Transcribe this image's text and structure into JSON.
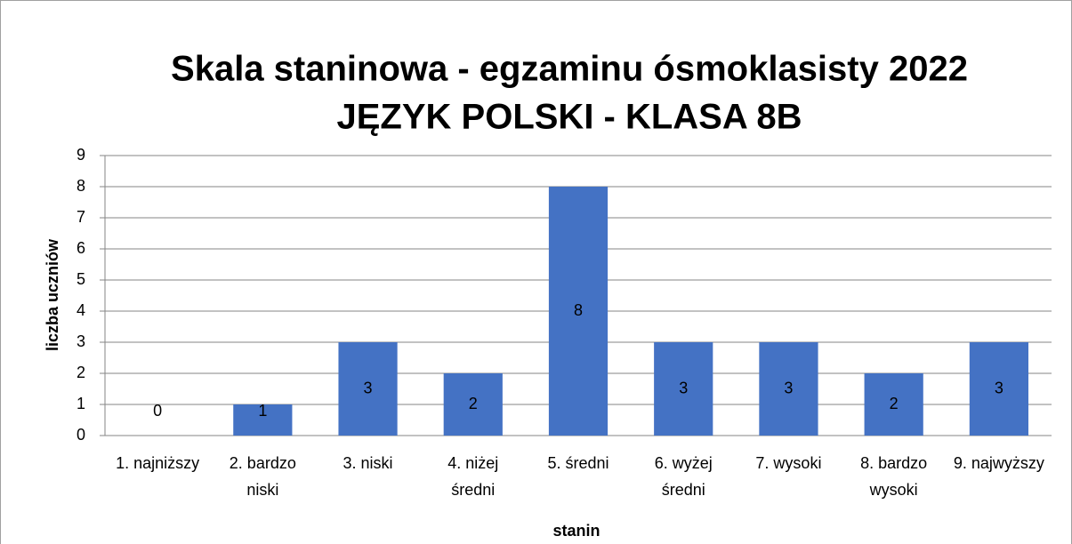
{
  "chart_data": {
    "type": "bar",
    "title": [
      "Skala staninowa  - egzaminu ósmoklasisty 2022",
      "JĘZYK  POLSKI - KLASA 8B"
    ],
    "x_label": "stanin",
    "y_label": "liczba uczniów",
    "categories": [
      "1. najniższy",
      "2. bardzo niski",
      "3. niski",
      "4. niżej średni",
      "5. średni",
      "6. wyżej średni",
      "7. wysoki",
      "8. bardzo wysoki",
      "9. najwyższy"
    ],
    "values": [
      0,
      1,
      3,
      2,
      8,
      3,
      3,
      2,
      3
    ],
    "color": "#4472c4",
    "ylim": [
      0,
      9
    ],
    "yticks": [
      0,
      1,
      2,
      3,
      4,
      5,
      6,
      7,
      8,
      9
    ],
    "grid": true
  }
}
